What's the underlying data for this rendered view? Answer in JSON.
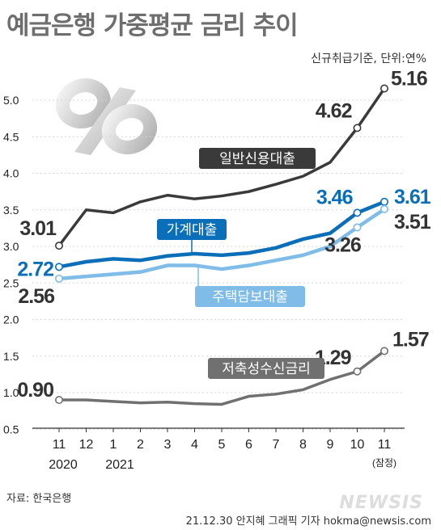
{
  "header": {
    "title": "예금은행 가중평균 금리 추이",
    "subtitle": "신규취급기준, 단위:연%"
  },
  "footer": {
    "source": "자료: 한국은행",
    "credit": "21.12.30 안지혜 그래픽 기자 hokma@newsis.com",
    "watermark": "NEWSIS"
  },
  "chart_data": {
    "type": "line",
    "title": "예금은행 가중평균 금리 추이",
    "subtitle": "신규취급기준, 단위:연%",
    "categories": [
      "11",
      "12",
      "1",
      "2",
      "3",
      "4",
      "5",
      "6",
      "7",
      "8",
      "9",
      "10",
      "11"
    ],
    "year_labels": [
      "2020",
      "2021"
    ],
    "last_note": "(잠정)",
    "ylim": [
      0.5,
      5.3
    ],
    "yticks": [
      "0.5",
      "1.0",
      "1.5",
      "2.0",
      "2.5",
      "3.0",
      "3.5",
      "4.0",
      "4.5",
      "5.0"
    ],
    "series": [
      {
        "name": "일반신용대출",
        "color": "#3a3a3a",
        "values": [
          3.01,
          3.5,
          3.46,
          3.61,
          3.7,
          3.65,
          3.69,
          3.75,
          3.85,
          3.96,
          4.15,
          4.62,
          5.16
        ],
        "labels": {
          "0": "3.01",
          "11": "4.62",
          "12": "5.16"
        }
      },
      {
        "name": "가계대출",
        "color": "#0a6fb8",
        "values": [
          2.72,
          2.79,
          2.83,
          2.81,
          2.87,
          2.9,
          2.88,
          2.91,
          2.98,
          3.1,
          3.18,
          3.46,
          3.61
        ],
        "labels": {
          "0": "2.72",
          "11": "3.46",
          "12": "3.61"
        }
      },
      {
        "name": "주택담보대출",
        "color": "#7fbce8",
        "values": [
          2.56,
          2.59,
          2.62,
          2.65,
          2.74,
          2.74,
          2.69,
          2.74,
          2.81,
          2.88,
          3.0,
          3.26,
          3.51
        ],
        "labels": {
          "0": "2.56",
          "11": "3.26",
          "12": "3.51"
        }
      },
      {
        "name": "저축성수신금리",
        "color": "#707070",
        "values": [
          0.9,
          0.9,
          0.88,
          0.86,
          0.87,
          0.85,
          0.84,
          0.95,
          0.98,
          1.04,
          1.18,
          1.29,
          1.57
        ],
        "labels": {
          "0": "0.90",
          "11": "1.29",
          "12": "1.57"
        }
      }
    ]
  }
}
